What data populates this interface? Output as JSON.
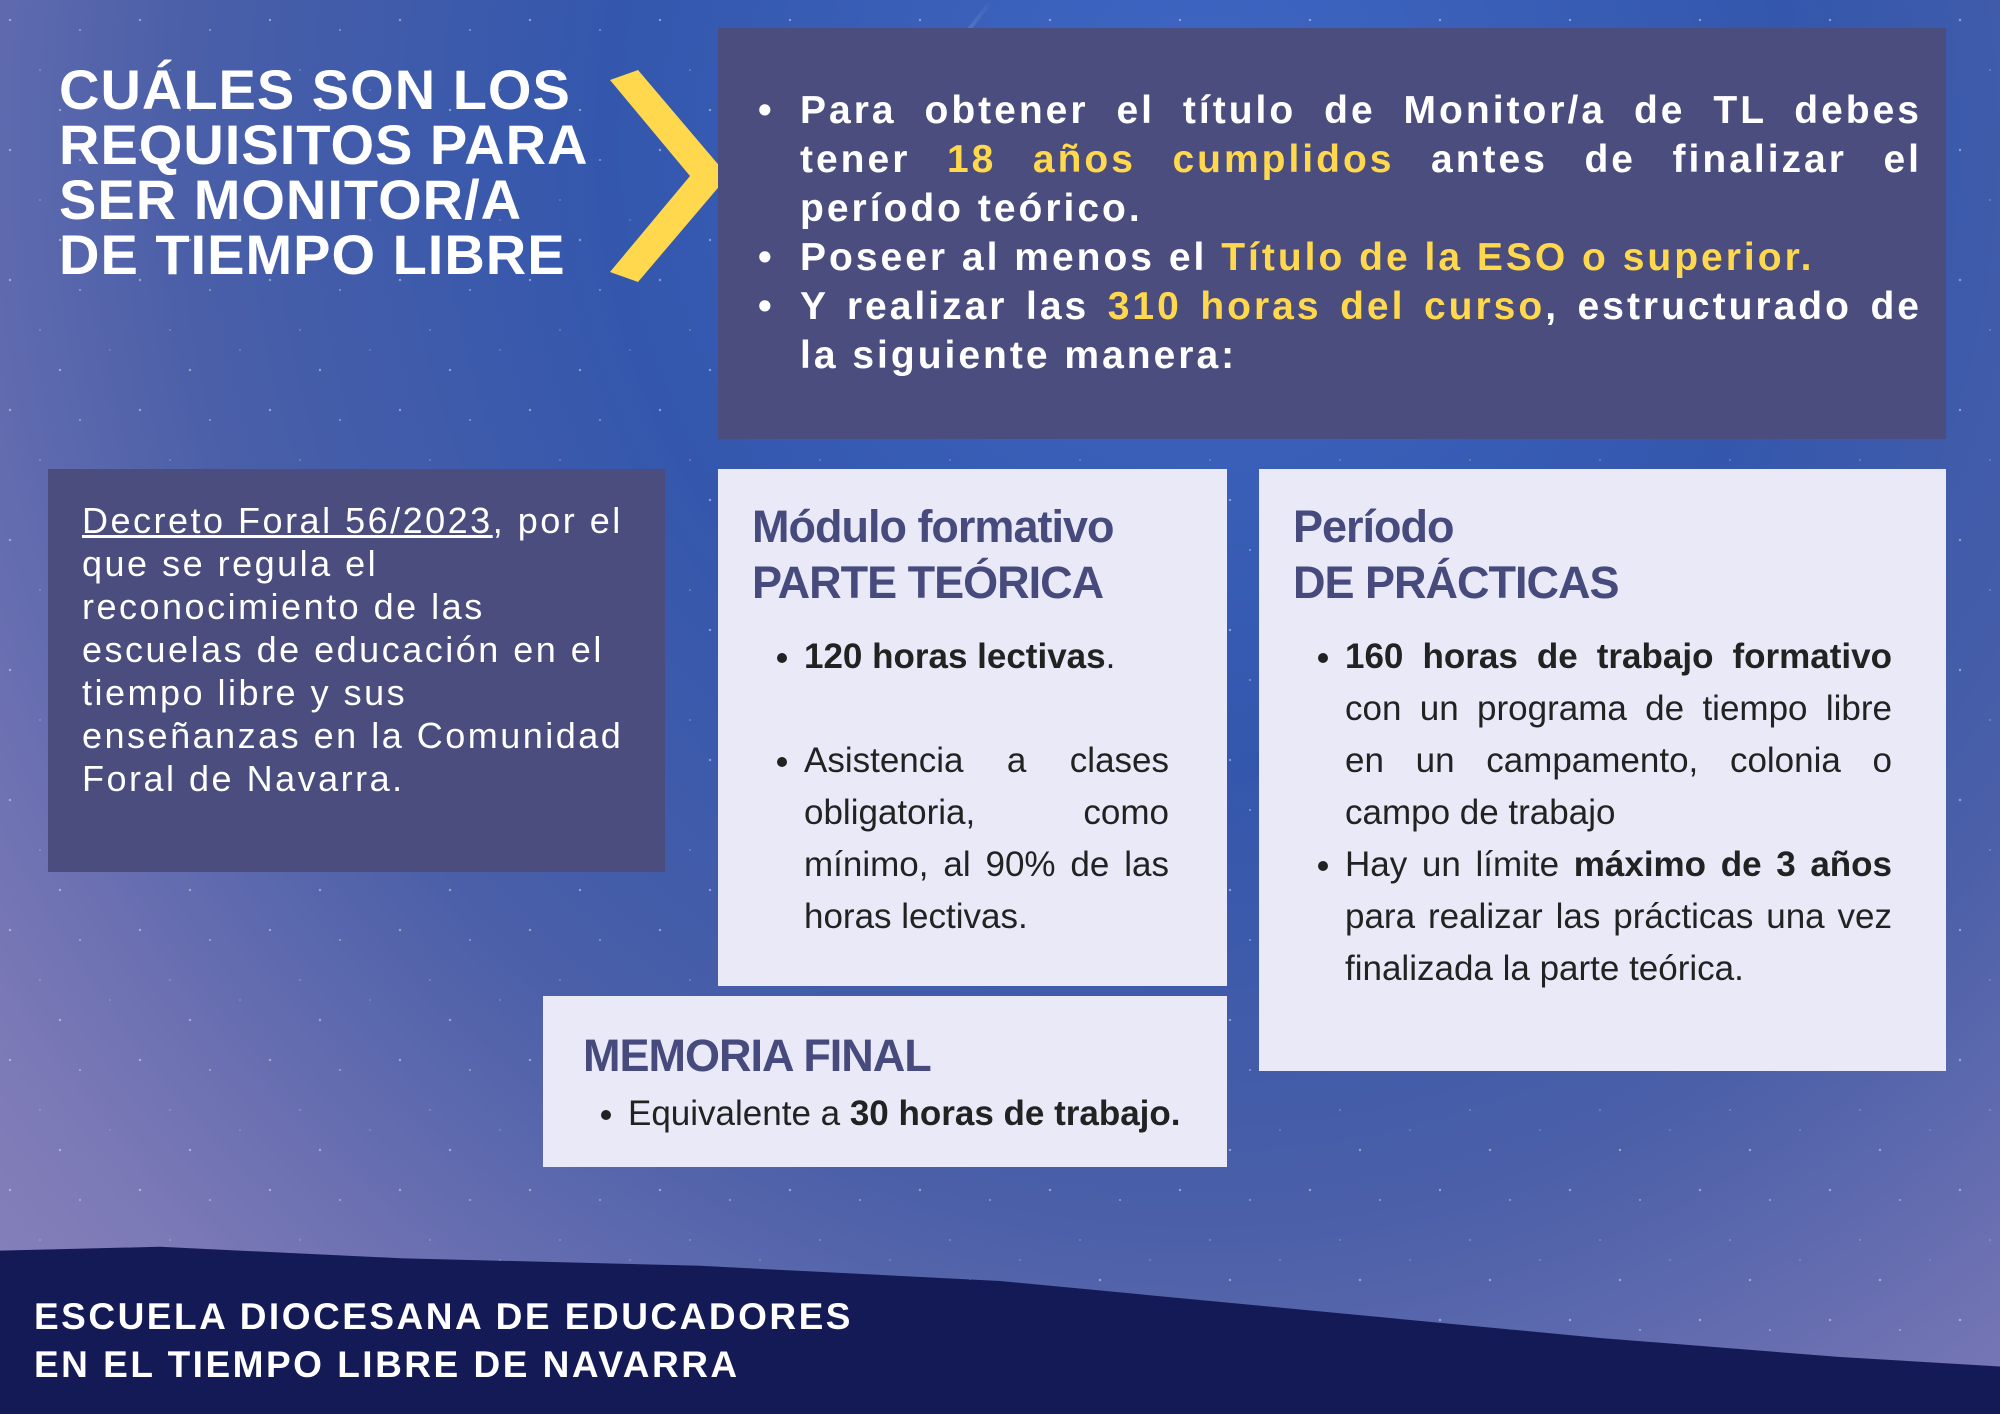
{
  "title": [
    "CUÁLES SON LOS",
    "REQUISITOS PARA",
    "SER MONITOR/A",
    "DE TIEMPO LIBRE"
  ],
  "accent_color": "#ffd84d",
  "requirements": {
    "r1": {
      "a": "Para obtener el título de Monitor/a de TL debes tener ",
      "h": "18 años cumplidos",
      "b": " antes de finalizar el período teórico."
    },
    "r2": {
      "a": "Poseer al menos el ",
      "h": "Título de la ESO o superior."
    },
    "r3": {
      "a": "Y realizar las ",
      "h": "310 horas del curso",
      "b": ", estructurado de la siguiente manera:"
    }
  },
  "decree": {
    "link": "Decreto Foral 56/2023",
    "text": ", por el que se regula el reconocimiento de las escuelas de educación en el tiempo libre y sus enseñanzas en la Comunidad Foral de Navarra."
  },
  "theory": {
    "h1": "Módulo formativo",
    "h2": "PARTE TEÓRICA",
    "i1": {
      "b": "120 horas lectivas",
      "t": "."
    },
    "i2": "Asistencia a clases obligatoria, como mínimo, al 90% de las horas lectivas."
  },
  "practice": {
    "h1": "Período",
    "h2": "DE PRÁCTICAS",
    "i1": {
      "b": "160 horas de trabajo formativo",
      "t": " con un programa de tiempo libre en un campamento, colonia o campo de trabajo"
    },
    "i2": {
      "a": "Hay un límite ",
      "b": "máximo de 3 años",
      "t": " para realizar las prácticas una vez finalizada la parte teórica."
    }
  },
  "memoria": {
    "h": "MEMORIA FINAL",
    "a": "Equivalente a ",
    "b": "30 horas de trabajo."
  },
  "footer": [
    "ESCUELA DIOCESANA DE EDUCADORES",
    "EN EL TIEMPO LIBRE DE NAVARRA"
  ]
}
